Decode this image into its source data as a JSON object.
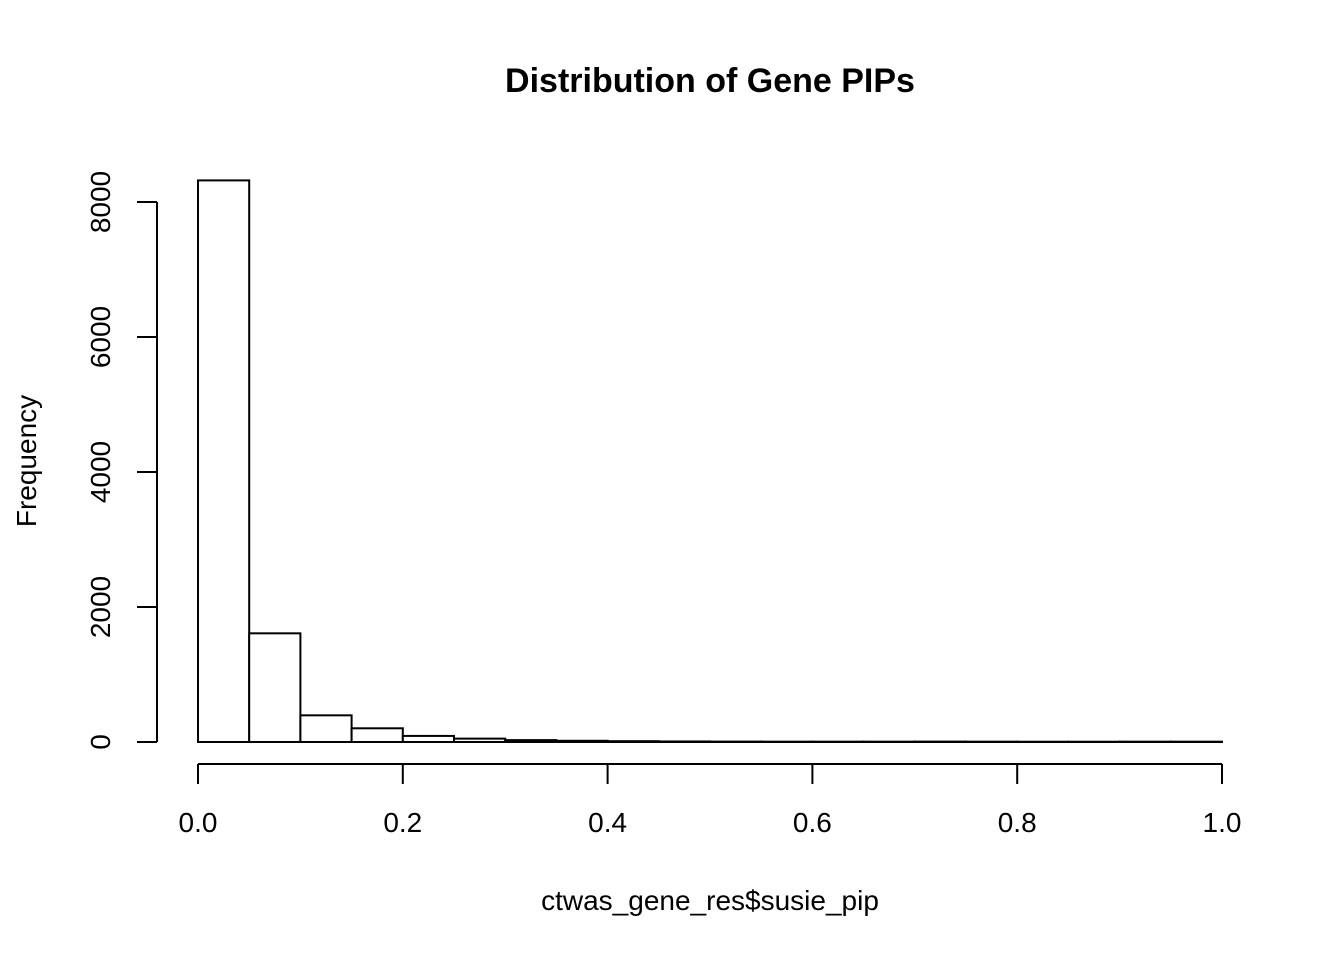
{
  "chart_data": {
    "type": "bar",
    "subtype": "histogram",
    "title": "Distribution of Gene PIPs",
    "xlabel": "ctwas_gene_res$susie_pip",
    "ylabel": "Frequency",
    "bin_edges": [
      0,
      0.05,
      0.1,
      0.15,
      0.2,
      0.25,
      0.3,
      0.35,
      0.4,
      0.45,
      0.5,
      0.55,
      0.6,
      0.65,
      0.7,
      0.75,
      0.8,
      0.85,
      0.9,
      0.95,
      1.0
    ],
    "values": [
      8320,
      1610,
      395,
      203,
      90,
      50,
      28,
      18,
      12,
      8,
      6,
      5,
      5,
      5,
      6,
      5,
      4,
      4,
      5,
      5
    ],
    "xlim": [
      0,
      1
    ],
    "ylim": [
      0,
      8000
    ],
    "xticks": [
      "0.0",
      "0.2",
      "0.4",
      "0.6",
      "0.8",
      "1.0"
    ],
    "yticks": [
      "0",
      "2000",
      "4000",
      "6000",
      "8000"
    ],
    "grid": false,
    "bar_fill": "#ffffff",
    "bar_stroke": "#000000"
  }
}
